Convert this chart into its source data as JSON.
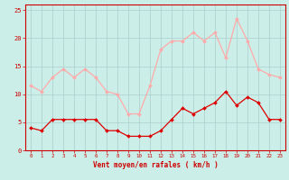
{
  "hours": [
    0,
    1,
    2,
    3,
    4,
    5,
    6,
    7,
    8,
    9,
    10,
    11,
    12,
    13,
    14,
    15,
    16,
    17,
    18,
    19,
    20,
    21,
    22,
    23
  ],
  "wind_avg": [
    4,
    3.5,
    5.5,
    5.5,
    5.5,
    5.5,
    5.5,
    3.5,
    3.5,
    2.5,
    2.5,
    2.5,
    3.5,
    5.5,
    7.5,
    6.5,
    7.5,
    8.5,
    10.5,
    8,
    9.5,
    8.5,
    5.5,
    5.5
  ],
  "wind_gust": [
    11.5,
    10.5,
    13,
    14.5,
    13,
    14.5,
    13,
    10.5,
    10,
    6.5,
    6.5,
    11.5,
    18,
    19.5,
    19.5,
    21,
    19.5,
    21,
    16.5,
    23.5,
    19.5,
    14.5,
    13.5,
    13
  ],
  "avg_color": "#dd0000",
  "gust_color": "#ffaaaa",
  "background_color": "#cceee8",
  "grid_color": "#aacccc",
  "xlabel": "Vent moyen/en rafales ( km/h )",
  "xlabel_color": "#cc0000",
  "tick_color": "#cc0000",
  "ylim": [
    0,
    26
  ],
  "yticks": [
    0,
    5,
    10,
    15,
    20,
    25
  ],
  "xlim": [
    -0.5,
    23.5
  ]
}
